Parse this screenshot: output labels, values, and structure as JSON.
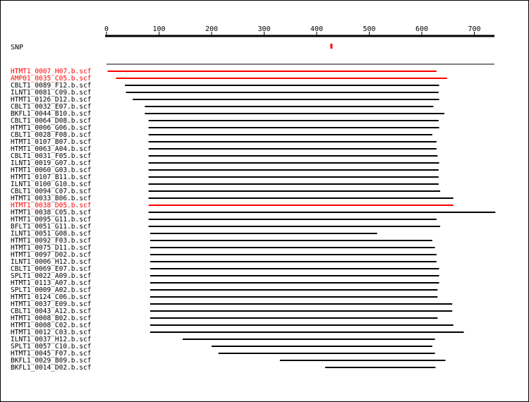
{
  "axis": {
    "min": 0,
    "max": 740,
    "ticks": [
      0,
      100,
      200,
      300,
      400,
      500,
      600,
      700
    ]
  },
  "snp": {
    "label": "SNP",
    "position": 428,
    "color": "#ff0000"
  },
  "colors": {
    "highlight": "#ff0000",
    "normal": "#000000"
  },
  "reads": [
    {
      "name": "HTMT1_0007_H07.b.scf",
      "start": 2,
      "end": 628,
      "highlight": true
    },
    {
      "name": "AMP01_0035_C05.b.scf",
      "start": 18,
      "end": 648,
      "highlight": true
    },
    {
      "name": "CBLT1_0089_F12.b.scf",
      "start": 35,
      "end": 633,
      "highlight": false
    },
    {
      "name": "ILNT1_0081_C09.b.scf",
      "start": 37,
      "end": 632,
      "highlight": false
    },
    {
      "name": "HTMT1_0126_D12.b.scf",
      "start": 50,
      "end": 633,
      "highlight": false
    },
    {
      "name": "CBLT1_0032_E07.b.scf",
      "start": 73,
      "end": 622,
      "highlight": false
    },
    {
      "name": "BKFL1_0044_B10.b.scf",
      "start": 73,
      "end": 643,
      "highlight": false
    },
    {
      "name": "CBLT1_0064_D08.b.scf",
      "start": 80,
      "end": 632,
      "highlight": false
    },
    {
      "name": "HTMT1_0006_G06.b.scf",
      "start": 80,
      "end": 633,
      "highlight": false
    },
    {
      "name": "CBLT1_0028_F08.b.scf",
      "start": 80,
      "end": 620,
      "highlight": false
    },
    {
      "name": "HTMT1_0107_B07.b.scf",
      "start": 80,
      "end": 628,
      "highlight": false
    },
    {
      "name": "HTMT1_0063_A04.b.scf",
      "start": 80,
      "end": 628,
      "highlight": false
    },
    {
      "name": "CBLT1_0031_F05.b.scf",
      "start": 80,
      "end": 630,
      "highlight": false
    },
    {
      "name": "ILNT1_0019_G07.b.scf",
      "start": 80,
      "end": 633,
      "highlight": false
    },
    {
      "name": "HTMT1_0060_G03.b.scf",
      "start": 80,
      "end": 632,
      "highlight": false
    },
    {
      "name": "HTMT1_0107_B11.b.scf",
      "start": 80,
      "end": 632,
      "highlight": false
    },
    {
      "name": "ILNT1_0100_G10.b.scf",
      "start": 80,
      "end": 632,
      "highlight": false
    },
    {
      "name": "CBLT1_0094_C07.b.scf",
      "start": 80,
      "end": 635,
      "highlight": false
    },
    {
      "name": "HTMT1_0033_B06.b.scf",
      "start": 80,
      "end": 660,
      "highlight": false
    },
    {
      "name": "HTMT1_0038_D05.b.scf",
      "start": 80,
      "end": 660,
      "highlight": true
    },
    {
      "name": "HTMT1_0038_C05.b.scf",
      "start": 80,
      "end": 740,
      "highlight": false
    },
    {
      "name": "HTMT1_0095_G11.b.scf",
      "start": 80,
      "end": 628,
      "highlight": false
    },
    {
      "name": "BFLT1_0051_G11.b.scf",
      "start": 80,
      "end": 635,
      "highlight": false
    },
    {
      "name": "ILNT1_0051_G08.b.scf",
      "start": 83,
      "end": 515,
      "highlight": false
    },
    {
      "name": "HTMT1_0092_F03.b.scf",
      "start": 83,
      "end": 620,
      "highlight": false
    },
    {
      "name": "HTMT1_0075_D11.b.scf",
      "start": 83,
      "end": 625,
      "highlight": false
    },
    {
      "name": "HTMT1_0097_D02.b.scf",
      "start": 83,
      "end": 628,
      "highlight": false
    },
    {
      "name": "ILNT1_0006_H12.b.scf",
      "start": 83,
      "end": 628,
      "highlight": false
    },
    {
      "name": "CBLT1_0069_E07.b.scf",
      "start": 83,
      "end": 633,
      "highlight": false
    },
    {
      "name": "SPLT1_0022_A09.b.scf",
      "start": 83,
      "end": 633,
      "highlight": false
    },
    {
      "name": "HTMT1_0113_A07.b.scf",
      "start": 83,
      "end": 633,
      "highlight": false
    },
    {
      "name": "SPLT1_0009_A02.b.scf",
      "start": 83,
      "end": 630,
      "highlight": false
    },
    {
      "name": "HTMT1_0124_C06.b.scf",
      "start": 83,
      "end": 630,
      "highlight": false
    },
    {
      "name": "HTMT1_0037_E09.b.scf",
      "start": 83,
      "end": 658,
      "highlight": false
    },
    {
      "name": "CBLT1_0043_A12.b.scf",
      "start": 83,
      "end": 658,
      "highlight": false
    },
    {
      "name": "HTMT1_0008_B02.b.scf",
      "start": 83,
      "end": 630,
      "highlight": false
    },
    {
      "name": "HTMT1_0008_C02.b.scf",
      "start": 83,
      "end": 660,
      "highlight": false
    },
    {
      "name": "HTMT1_0012_C03.b.scf",
      "start": 83,
      "end": 680,
      "highlight": false
    },
    {
      "name": "ILNT1_0037_H12.b.scf",
      "start": 145,
      "end": 625,
      "highlight": false
    },
    {
      "name": "SPLT1_0057_C10.b.scf",
      "start": 200,
      "end": 620,
      "highlight": false
    },
    {
      "name": "HTMT1_0045_F07.b.scf",
      "start": 213,
      "end": 625,
      "highlight": false
    },
    {
      "name": "BKFL1_0029_B09.b.scf",
      "start": 330,
      "end": 645,
      "highlight": false
    },
    {
      "name": "BKFL1_0014_D02.b.scf",
      "start": 416,
      "end": 626,
      "highlight": false
    }
  ]
}
